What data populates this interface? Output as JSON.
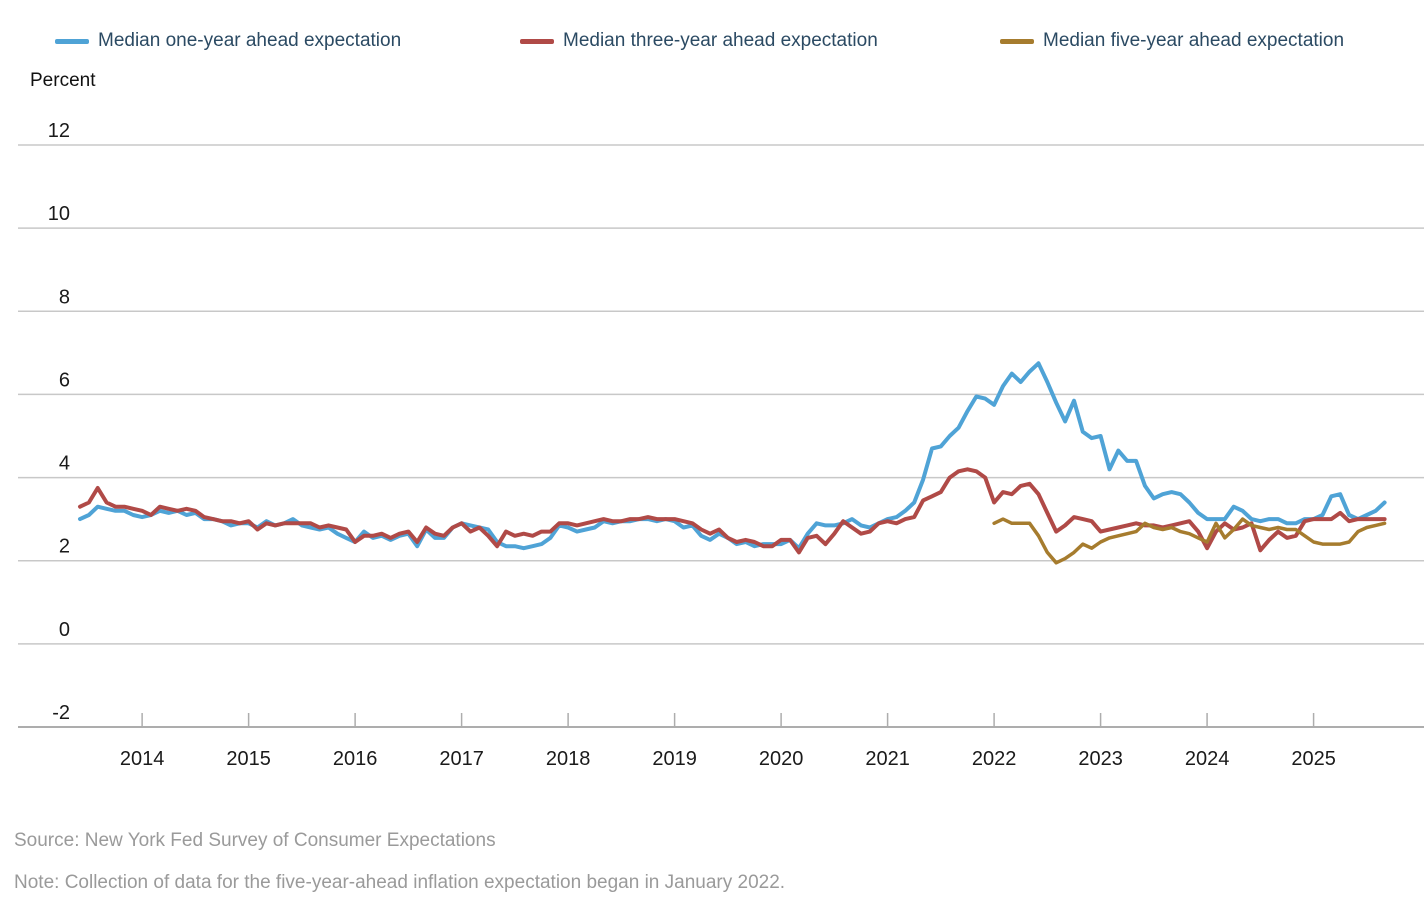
{
  "y_axis": {
    "title": "Percent",
    "ticks": [
      12,
      10,
      8,
      6,
      4,
      2,
      0,
      -2
    ]
  },
  "x_axis": {
    "years": [
      2014,
      2015,
      2016,
      2017,
      2018,
      2019,
      2020,
      2021,
      2022,
      2023,
      2024,
      2025
    ]
  },
  "legend": [
    {
      "label": "Median one-year ahead expectation",
      "color": "#4FA3D6"
    },
    {
      "label": "Median three-year ahead expectation",
      "color": "#B04A47"
    },
    {
      "label": "Median five-year ahead expectation",
      "color": "#A67C2E"
    }
  ],
  "footer": {
    "source": "Source: New York Fed Survey of Consumer Expectations",
    "note": "Note: Collection of data for the five-year-ahead inflation expectation began in January 2022."
  },
  "colors": {
    "grid": "#C8C8C8",
    "axis": "#ADADAD",
    "tick_text": "#1A1A1A",
    "legend_text": "#2B4A63"
  },
  "chart_data": {
    "type": "line",
    "frequency": "monthly",
    "start": "2013-06",
    "end": "2025-09",
    "title": "",
    "xlabel": "",
    "ylabel": "Percent",
    "ylim": [
      -2,
      12
    ],
    "grid": true,
    "legend_position": "top",
    "series": [
      {
        "name": "Median one-year ahead expectation",
        "color": "#4FA3D6",
        "start_month": "2013-06",
        "values": [
          3.0,
          3.1,
          3.3,
          3.25,
          3.2,
          3.2,
          3.1,
          3.05,
          3.1,
          3.2,
          3.15,
          3.2,
          3.1,
          3.15,
          3.0,
          3.0,
          2.95,
          2.85,
          2.9,
          2.9,
          2.8,
          2.95,
          2.85,
          2.9,
          3.0,
          2.85,
          2.8,
          2.75,
          2.8,
          2.65,
          2.55,
          2.45,
          2.7,
          2.55,
          2.6,
          2.5,
          2.6,
          2.65,
          2.35,
          2.75,
          2.55,
          2.55,
          2.8,
          2.9,
          2.85,
          2.8,
          2.75,
          2.45,
          2.35,
          2.35,
          2.3,
          2.35,
          2.4,
          2.55,
          2.85,
          2.8,
          2.7,
          2.75,
          2.8,
          2.95,
          2.9,
          2.95,
          2.95,
          3.0,
          3.0,
          2.95,
          3.0,
          2.95,
          2.8,
          2.85,
          2.6,
          2.5,
          2.65,
          2.55,
          2.4,
          2.45,
          2.35,
          2.4,
          2.4,
          2.4,
          2.5,
          2.3,
          2.65,
          2.9,
          2.85,
          2.85,
          2.9,
          3.0,
          2.85,
          2.8,
          2.9,
          3.0,
          3.05,
          3.2,
          3.4,
          3.95,
          4.7,
          4.75,
          5.0,
          5.2,
          5.6,
          5.95,
          5.9,
          5.75,
          6.2,
          6.5,
          6.3,
          6.55,
          6.75,
          6.3,
          5.8,
          5.35,
          5.85,
          5.1,
          4.95,
          5.0,
          4.2,
          4.65,
          4.4,
          4.4,
          3.8,
          3.5,
          3.6,
          3.65,
          3.6,
          3.4,
          3.15,
          3.0,
          3.0,
          3.0,
          3.3,
          3.2,
          3.0,
          2.95,
          3.0,
          3.0,
          2.9,
          2.9,
          3.0,
          3.0,
          3.1,
          3.55,
          3.6,
          3.1,
          3.0,
          3.1,
          3.2,
          3.4
        ]
      },
      {
        "name": "Median three-year ahead expectation",
        "color": "#B04A47",
        "start_month": "2013-06",
        "values": [
          3.3,
          3.4,
          3.75,
          3.4,
          3.3,
          3.3,
          3.25,
          3.2,
          3.1,
          3.3,
          3.25,
          3.2,
          3.25,
          3.2,
          3.05,
          3.0,
          2.95,
          2.95,
          2.9,
          2.95,
          2.75,
          2.9,
          2.85,
          2.9,
          2.9,
          2.9,
          2.9,
          2.8,
          2.85,
          2.8,
          2.75,
          2.45,
          2.6,
          2.6,
          2.65,
          2.55,
          2.65,
          2.7,
          2.45,
          2.8,
          2.65,
          2.6,
          2.8,
          2.9,
          2.7,
          2.8,
          2.6,
          2.35,
          2.7,
          2.6,
          2.65,
          2.6,
          2.7,
          2.7,
          2.9,
          2.9,
          2.85,
          2.9,
          2.95,
          3.0,
          2.95,
          2.95,
          3.0,
          3.0,
          3.05,
          3.0,
          3.0,
          3.0,
          2.95,
          2.9,
          2.75,
          2.65,
          2.75,
          2.55,
          2.45,
          2.5,
          2.45,
          2.35,
          2.35,
          2.5,
          2.5,
          2.2,
          2.55,
          2.6,
          2.4,
          2.65,
          2.95,
          2.8,
          2.65,
          2.7,
          2.9,
          2.95,
          2.9,
          3.0,
          3.05,
          3.45,
          3.55,
          3.65,
          4.0,
          4.15,
          4.2,
          4.15,
          4.0,
          3.4,
          3.65,
          3.6,
          3.8,
          3.85,
          3.6,
          3.15,
          2.7,
          2.85,
          3.05,
          3.0,
          2.95,
          2.7,
          2.75,
          2.8,
          2.85,
          2.9,
          2.85,
          2.85,
          2.8,
          2.85,
          2.9,
          2.95,
          2.7,
          2.3,
          2.7,
          2.9,
          2.75,
          2.8,
          2.9,
          2.25,
          2.5,
          2.7,
          2.55,
          2.6,
          2.95,
          3.0,
          3.0,
          3.0,
          3.15,
          2.95,
          3.0,
          3.0,
          3.0,
          3.0
        ]
      },
      {
        "name": "Median five-year ahead expectation",
        "color": "#A67C2E",
        "start_month": "2022-01",
        "values": [
          2.9,
          3.0,
          2.9,
          2.9,
          2.9,
          2.6,
          2.2,
          1.95,
          2.05,
          2.2,
          2.4,
          2.3,
          2.45,
          2.55,
          2.6,
          2.65,
          2.7,
          2.9,
          2.8,
          2.75,
          2.8,
          2.7,
          2.65,
          2.55,
          2.45,
          2.9,
          2.55,
          2.75,
          3.0,
          2.85,
          2.8,
          2.75,
          2.8,
          2.75,
          2.75,
          2.6,
          2.45,
          2.4,
          2.4,
          2.4,
          2.45,
          2.7,
          2.8,
          2.85,
          2.9
        ]
      }
    ]
  }
}
